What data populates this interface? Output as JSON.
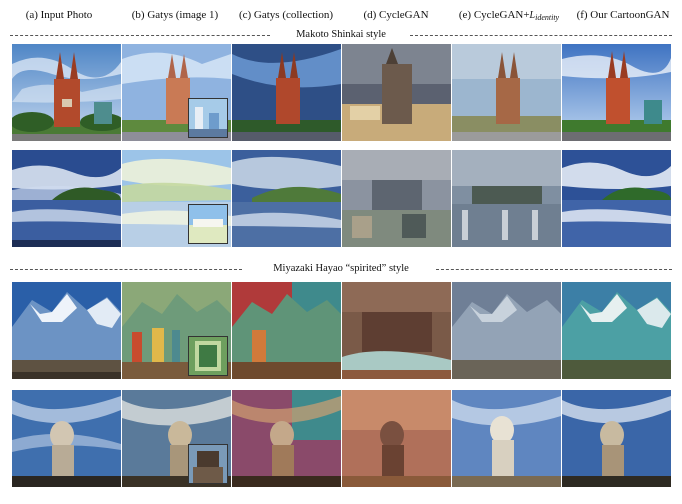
{
  "columns": [
    {
      "label": "(a) Input Photo"
    },
    {
      "label": "(b) Gatys (image 1)"
    },
    {
      "label": "(c) Gatys (collection)"
    },
    {
      "label": "(d) CycleGAN"
    },
    {
      "label_main": "(e) CycleGAN+",
      "label_sub": "L",
      "label_subscript": "identity"
    },
    {
      "label": "(f) Our CartoonGAN"
    }
  ],
  "sections": [
    {
      "title": "Makoto Shinkai style"
    },
    {
      "title": "Miyazaki Hayao “spirited” style"
    }
  ],
  "colors": {
    "sky_blue": "#6e9fd6",
    "church_red": "#b24a2c",
    "grass_green": "#3d7a2e",
    "mountain_blue": "#4c7fb8",
    "cyclegan_brown": "#7a5a48",
    "merlion_sky": "#3f6fae"
  }
}
